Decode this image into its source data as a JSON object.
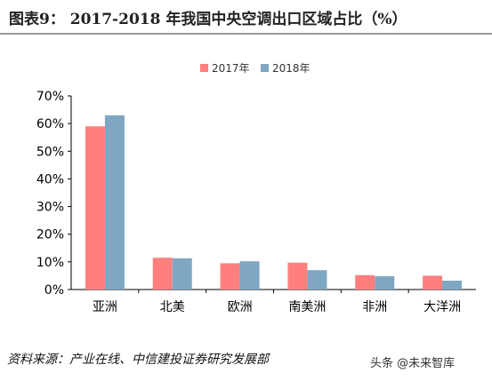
{
  "header": {
    "title": "图表9：  2017-2018 年我国中央空调出口区域占比（%）"
  },
  "chart_data": {
    "type": "bar",
    "categories": [
      "亚洲",
      "北美",
      "欧洲",
      "南美洲",
      "非洲",
      "大洋洲"
    ],
    "series": [
      {
        "name": "2017年",
        "values": [
          59,
          11.5,
          9.5,
          9.7,
          5.2,
          5.0
        ],
        "color": "#ff7f7f"
      },
      {
        "name": "2018年",
        "values": [
          63,
          11.3,
          10.2,
          7.0,
          4.8,
          3.2
        ],
        "color": "#7fa7c2"
      }
    ],
    "title": "",
    "xlabel": "",
    "ylabel": "",
    "ylim": [
      0,
      70
    ],
    "yticks": [
      "0%",
      "10%",
      "20%",
      "30%",
      "40%",
      "50%",
      "60%",
      "70%"
    ],
    "grid": false,
    "legend": "top-center"
  },
  "footer": {
    "source": "资料来源：产业在线、中信建投证券研究发展部",
    "watermark": "头条 @未来智库"
  }
}
